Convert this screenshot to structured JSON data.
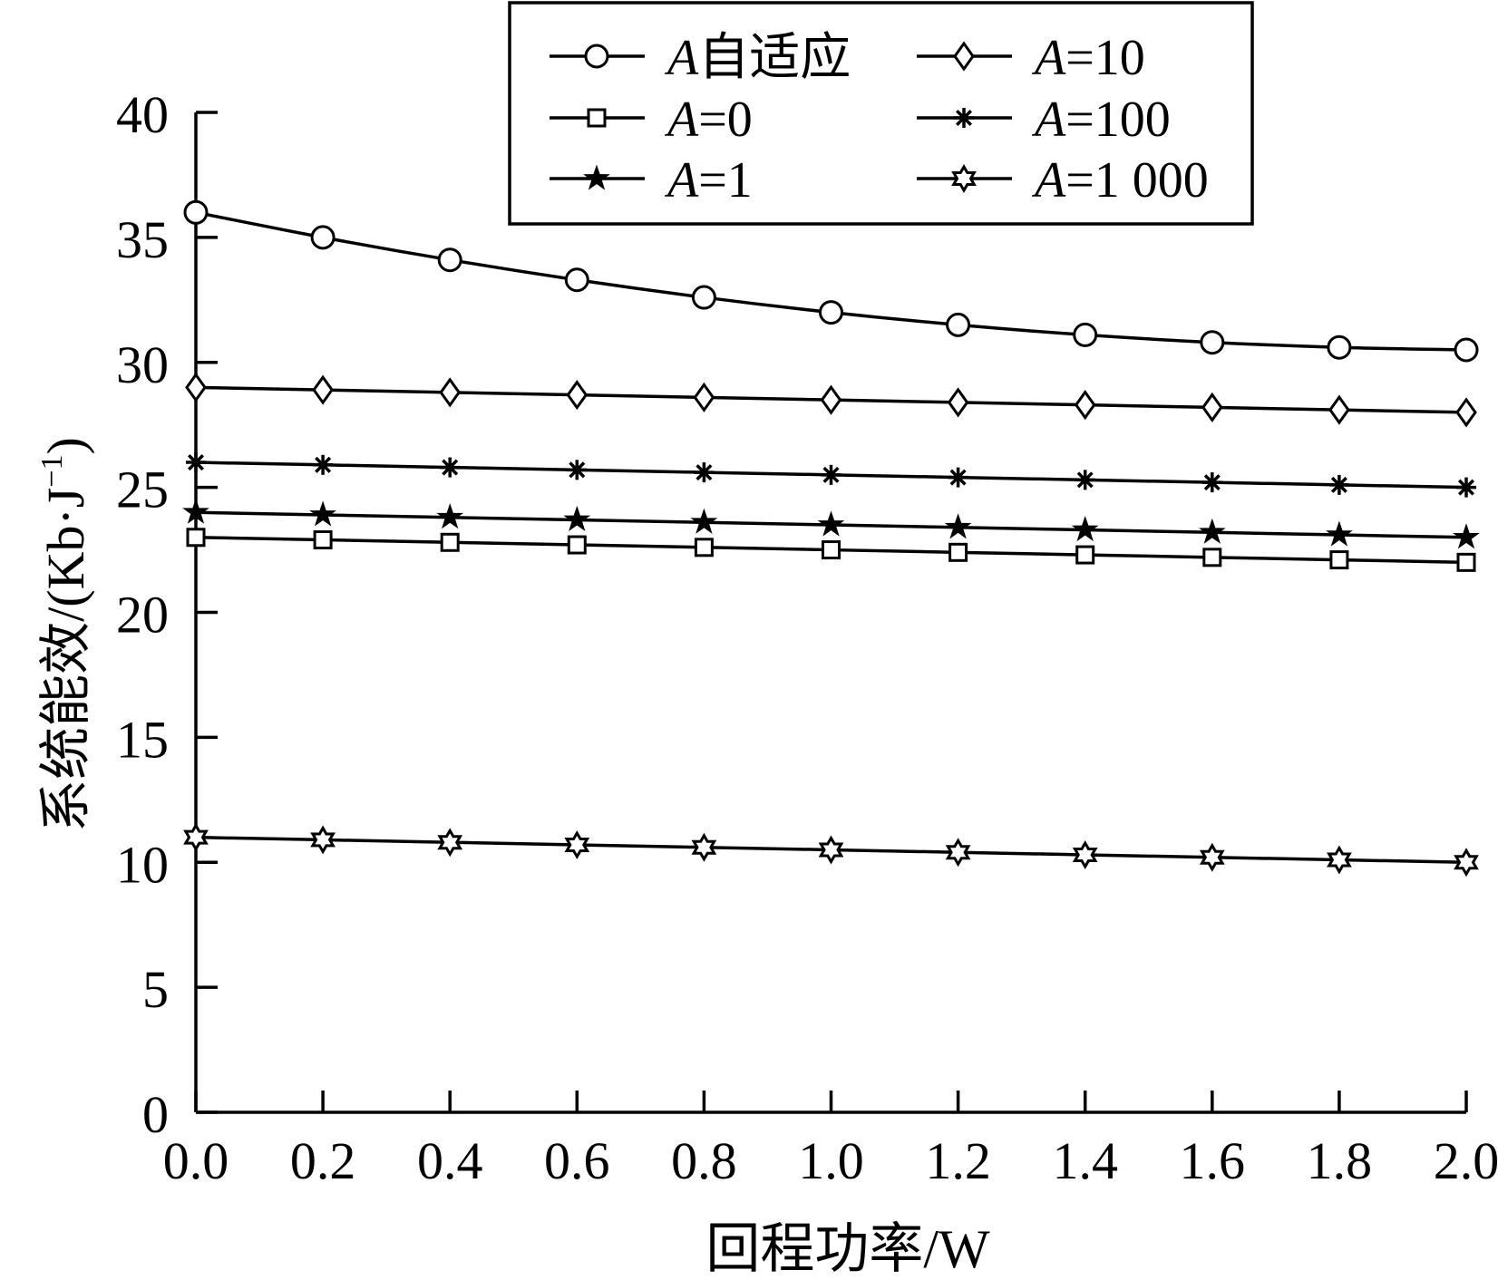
{
  "chart_data": {
    "type": "line",
    "xlabel": "回程功率/W",
    "ylabel": "系统能效/(Kb·J",
    "ylabel_sup": "−1",
    "ylabel_close": ")",
    "xlim": [
      0,
      2.0
    ],
    "ylim": [
      0,
      40
    ],
    "xticks": [
      "0.0",
      "0.2",
      "0.4",
      "0.6",
      "0.8",
      "1.0",
      "1.2",
      "1.4",
      "1.6",
      "1.8",
      "2.0"
    ],
    "yticks": [
      "0",
      "5",
      "10",
      "15",
      "20",
      "25",
      "30",
      "35",
      "40"
    ],
    "grid": false,
    "legend_position": "top",
    "x": [
      0.0,
      0.2,
      0.4,
      0.6,
      0.8,
      1.0,
      1.2,
      1.4,
      1.6,
      1.8,
      2.0
    ],
    "series": [
      {
        "name_italic": "A",
        "name_rest": "自适应",
        "marker": "circle",
        "values": [
          36.0,
          35.0,
          34.1,
          33.3,
          32.6,
          32.0,
          31.5,
          31.1,
          30.8,
          30.6,
          30.5
        ]
      },
      {
        "name_italic": "A",
        "name_rest": "=0",
        "marker": "square",
        "values": [
          23.0,
          22.9,
          22.8,
          22.7,
          22.6,
          22.5,
          22.4,
          22.3,
          22.2,
          22.1,
          22.0
        ]
      },
      {
        "name_italic": "A",
        "name_rest": "=1",
        "marker": "star5",
        "values": [
          24.0,
          23.9,
          23.8,
          23.7,
          23.6,
          23.5,
          23.4,
          23.3,
          23.2,
          23.1,
          23.0
        ]
      },
      {
        "name_italic": "A",
        "name_rest": "=10",
        "marker": "diamond",
        "values": [
          29.0,
          28.9,
          28.8,
          28.7,
          28.6,
          28.5,
          28.4,
          28.3,
          28.2,
          28.1,
          28.0
        ]
      },
      {
        "name_italic": "A",
        "name_rest": "=100",
        "marker": "asterisk",
        "values": [
          26.0,
          25.9,
          25.8,
          25.7,
          25.6,
          25.5,
          25.4,
          25.3,
          25.2,
          25.1,
          25.0
        ]
      },
      {
        "name_italic": "A",
        "name_rest": "=1 000",
        "marker": "hexagram",
        "values": [
          11.0,
          10.9,
          10.8,
          10.7,
          10.6,
          10.5,
          10.4,
          10.3,
          10.2,
          10.1,
          10.0
        ]
      }
    ]
  }
}
